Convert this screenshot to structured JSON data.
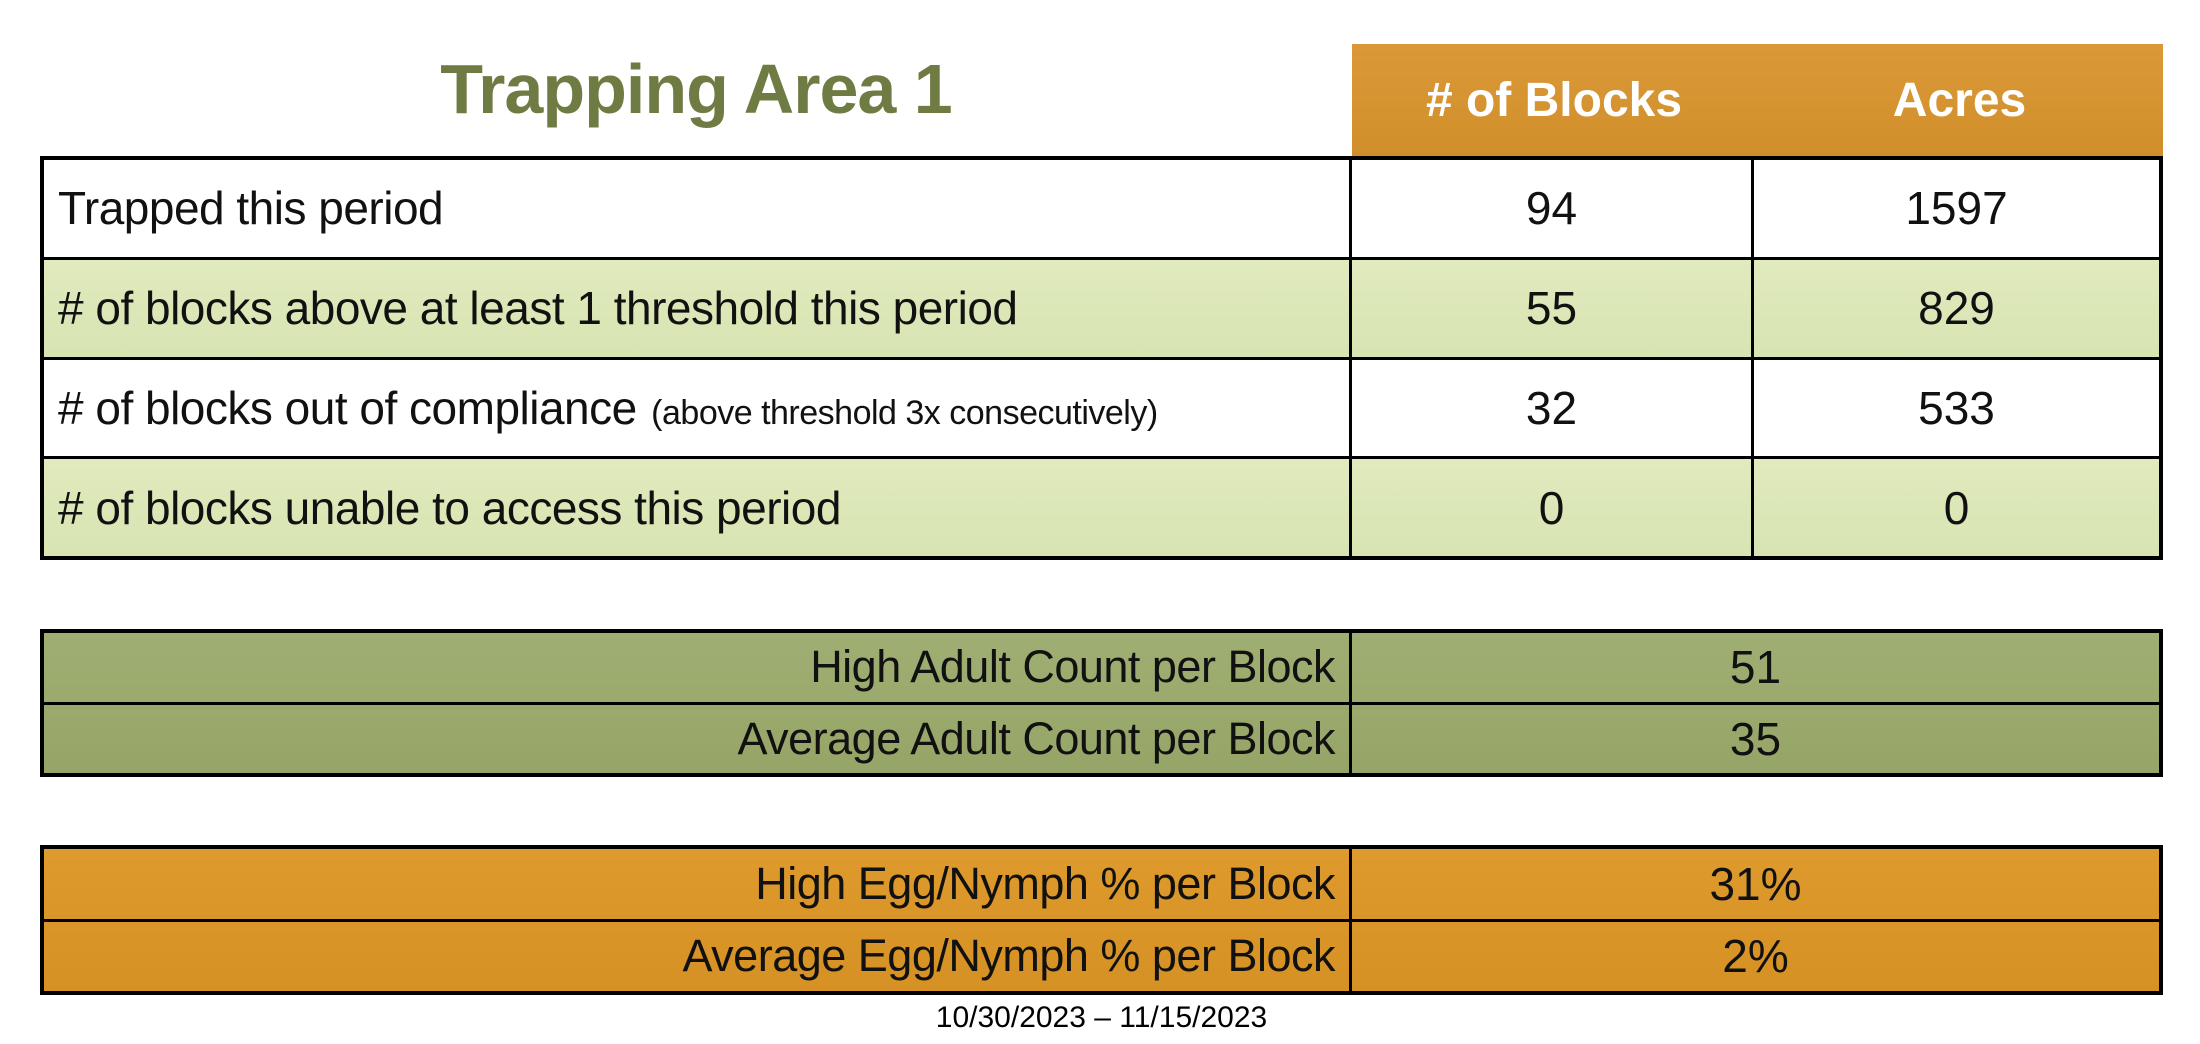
{
  "title": "Trapping Area 1",
  "period": "10/30/2023 – 11/15/2023",
  "colors": {
    "title_olive": "#6E7B42",
    "header_orange": "#D79433",
    "light_green_row": "#DCE7B8",
    "sage_green": "#9CAB6E",
    "egg_orange": "#DB9728",
    "border_black": "#000000",
    "header_text": "#FFFFFF"
  },
  "main_table": {
    "columns": [
      "# of Blocks",
      "Acres"
    ],
    "rows": [
      {
        "label": "Trapped this period",
        "note": "",
        "blocks": "94",
        "acres": "1597"
      },
      {
        "label": "# of blocks above at least 1 threshold this period",
        "note": "",
        "blocks": "55",
        "acres": "829"
      },
      {
        "label": "# of blocks out of compliance",
        "note": "(above threshold 3x consecutively)",
        "blocks": "32",
        "acres": "533"
      },
      {
        "label": "# of blocks unable to access this period",
        "note": "",
        "blocks": "0",
        "acres": "0"
      }
    ]
  },
  "adult_table": {
    "rows": [
      {
        "label": "High Adult Count per Block",
        "value": "51"
      },
      {
        "label": "Average Adult Count per Block",
        "value": "35"
      }
    ]
  },
  "egg_table": {
    "rows": [
      {
        "label": "High Egg/Nymph % per Block",
        "value": "31%"
      },
      {
        "label": "Average Egg/Nymph % per Block",
        "value": "2%"
      }
    ]
  }
}
